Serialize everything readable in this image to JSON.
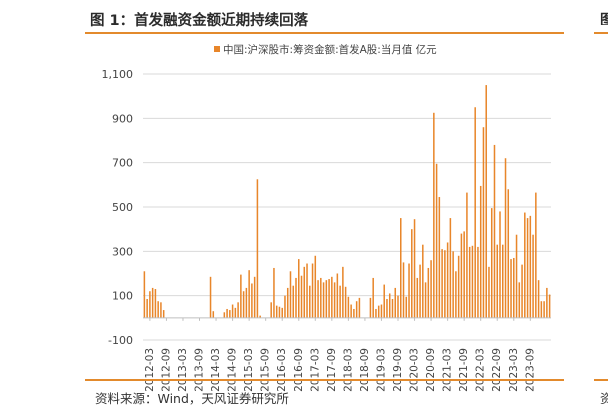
{
  "figure": {
    "title": "图 1：首发融资金额近期持续回落",
    "source": "资料来源：Wind，天风证券研究所",
    "right_fragment_title": "图",
    "right_fragment_source": "资"
  },
  "colors": {
    "bar": "#e8862a",
    "rule": "#e38a2c",
    "grid": "#d9d9d9"
  },
  "chart_data": {
    "type": "bar",
    "legend_position": "top-center",
    "grid": true,
    "ylim": [
      -100,
      1100
    ],
    "yticks": [
      -100,
      100,
      300,
      500,
      700,
      900,
      1100
    ],
    "ytick_labels": [
      "-100",
      "100",
      "300",
      "500",
      "700",
      "900",
      "1,100"
    ],
    "xtick_labels": [
      "2012-03",
      "2012-09",
      "2013-03",
      "2013-09",
      "2014-03",
      "2014-09",
      "2015-03",
      "2015-09",
      "2016-03",
      "2016-09",
      "2017-03",
      "2017-09",
      "2018-03",
      "2018-09",
      "2019-03",
      "2019-09",
      "2020-03",
      "2020-09",
      "2021-03",
      "2021-09",
      "2022-03",
      "2022-09",
      "2023-03",
      "2023-09"
    ],
    "series": [
      {
        "name": "中国:沪深股市:筹资金额:首发A股:当月值 亿元",
        "start": "2012-01",
        "end": "2023-12",
        "values": [
          210,
          85,
          120,
          135,
          130,
          75,
          70,
          35,
          0,
          0,
          0,
          0,
          0,
          0,
          0,
          0,
          0,
          0,
          0,
          0,
          0,
          0,
          0,
          0,
          185,
          30,
          0,
          0,
          0,
          25,
          40,
          35,
          60,
          45,
          70,
          195,
          120,
          135,
          215,
          155,
          185,
          625,
          10,
          0,
          0,
          0,
          70,
          225,
          55,
          50,
          45,
          100,
          135,
          210,
          145,
          180,
          265,
          190,
          230,
          245,
          145,
          245,
          280,
          170,
          180,
          160,
          170,
          175,
          185,
          160,
          200,
          145,
          230,
          140,
          95,
          60,
          40,
          75,
          90,
          0,
          0,
          0,
          90,
          180,
          40,
          55,
          60,
          150,
          85,
          110,
          85,
          135,
          100,
          450,
          250,
          95,
          245,
          400,
          445,
          180,
          240,
          330,
          160,
          225,
          260,
          925,
          695,
          545,
          310,
          305,
          340,
          450,
          300,
          210,
          280,
          380,
          390,
          565,
          320,
          325,
          950,
          320,
          595,
          860,
          1050,
          230,
          495,
          780,
          330,
          480,
          330,
          720,
          580,
          265,
          270,
          375,
          160,
          240,
          475,
          450,
          460,
          375,
          565,
          170,
          75,
          75,
          135,
          105
        ]
      }
    ]
  }
}
